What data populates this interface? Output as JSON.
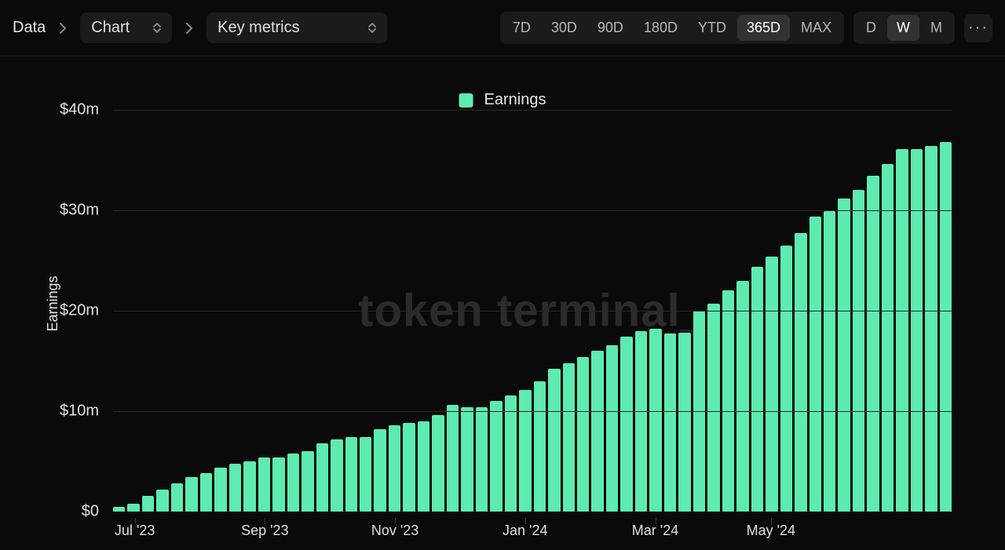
{
  "toolbar": {
    "crumb_root": "Data",
    "view_select": "Chart",
    "metric_select": "Key metrics",
    "ranges": [
      "7D",
      "30D",
      "90D",
      "180D",
      "YTD",
      "365D",
      "MAX"
    ],
    "range_active": "365D",
    "intervals": [
      "D",
      "W",
      "M"
    ],
    "interval_active": "W"
  },
  "chart": {
    "type": "bar",
    "legend_label": "Earnings",
    "y_axis_title": "Earnings",
    "watermark": "token terminal_",
    "bar_color": "#5eebb0",
    "grid_color": "#2a2a2a",
    "background_color": "#0a0a0a",
    "y_ticks": [
      {
        "value": 0,
        "label": "$0"
      },
      {
        "value": 10000000,
        "label": "$10m"
      },
      {
        "value": 20000000,
        "label": "$20m"
      },
      {
        "value": 30000000,
        "label": "$30m"
      },
      {
        "value": 40000000,
        "label": "$40m"
      }
    ],
    "y_min": 0,
    "y_max": 40000000,
    "x_ticks": [
      {
        "index": 1,
        "label": "Jul '23"
      },
      {
        "index": 10,
        "label": "Sep '23"
      },
      {
        "index": 19,
        "label": "Nov '23"
      },
      {
        "index": 28,
        "label": "Jan '24"
      },
      {
        "index": 37,
        "label": "Mar '24"
      },
      {
        "index": 45,
        "label": "May '24"
      }
    ],
    "values": [
      500000,
      800000,
      1600000,
      2200000,
      2800000,
      3400000,
      3800000,
      4400000,
      4800000,
      5000000,
      5400000,
      5400000,
      5800000,
      6000000,
      6800000,
      7200000,
      7400000,
      7400000,
      8200000,
      8600000,
      8800000,
      9000000,
      9600000,
      10600000,
      10400000,
      10400000,
      11000000,
      11600000,
      12100000,
      13000000,
      14200000,
      14800000,
      15400000,
      16000000,
      16600000,
      17400000,
      18000000,
      18200000,
      17700000,
      17800000,
      20000000,
      20700000,
      22000000,
      23000000,
      24400000,
      25400000,
      26500000,
      27700000,
      29400000,
      29900000,
      31200000,
      32000000,
      33400000,
      34600000,
      36100000,
      36100000,
      36400000,
      36800000
    ]
  }
}
